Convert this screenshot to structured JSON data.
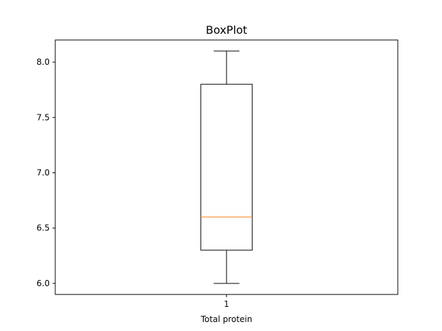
{
  "chart_data": {
    "type": "boxplot",
    "title": "BoxPlot",
    "xlabel": "Total protein",
    "ylabel": "",
    "categories": [
      "1"
    ],
    "boxes": [
      {
        "category": "1",
        "whisker_low": 6.0,
        "q1": 6.3,
        "median": 6.6,
        "q3": 7.8,
        "whisker_high": 8.1
      }
    ],
    "ylim": [
      5.9,
      8.2
    ],
    "yticks": [
      6.0,
      6.5,
      7.0,
      7.5,
      8.0
    ],
    "ytick_labels": [
      "6.0",
      "6.5",
      "7.0",
      "7.5",
      "8.0"
    ],
    "grid": false,
    "colors": {
      "box": "#000000",
      "median": "#ff7f0e",
      "whisker": "#000000"
    }
  }
}
